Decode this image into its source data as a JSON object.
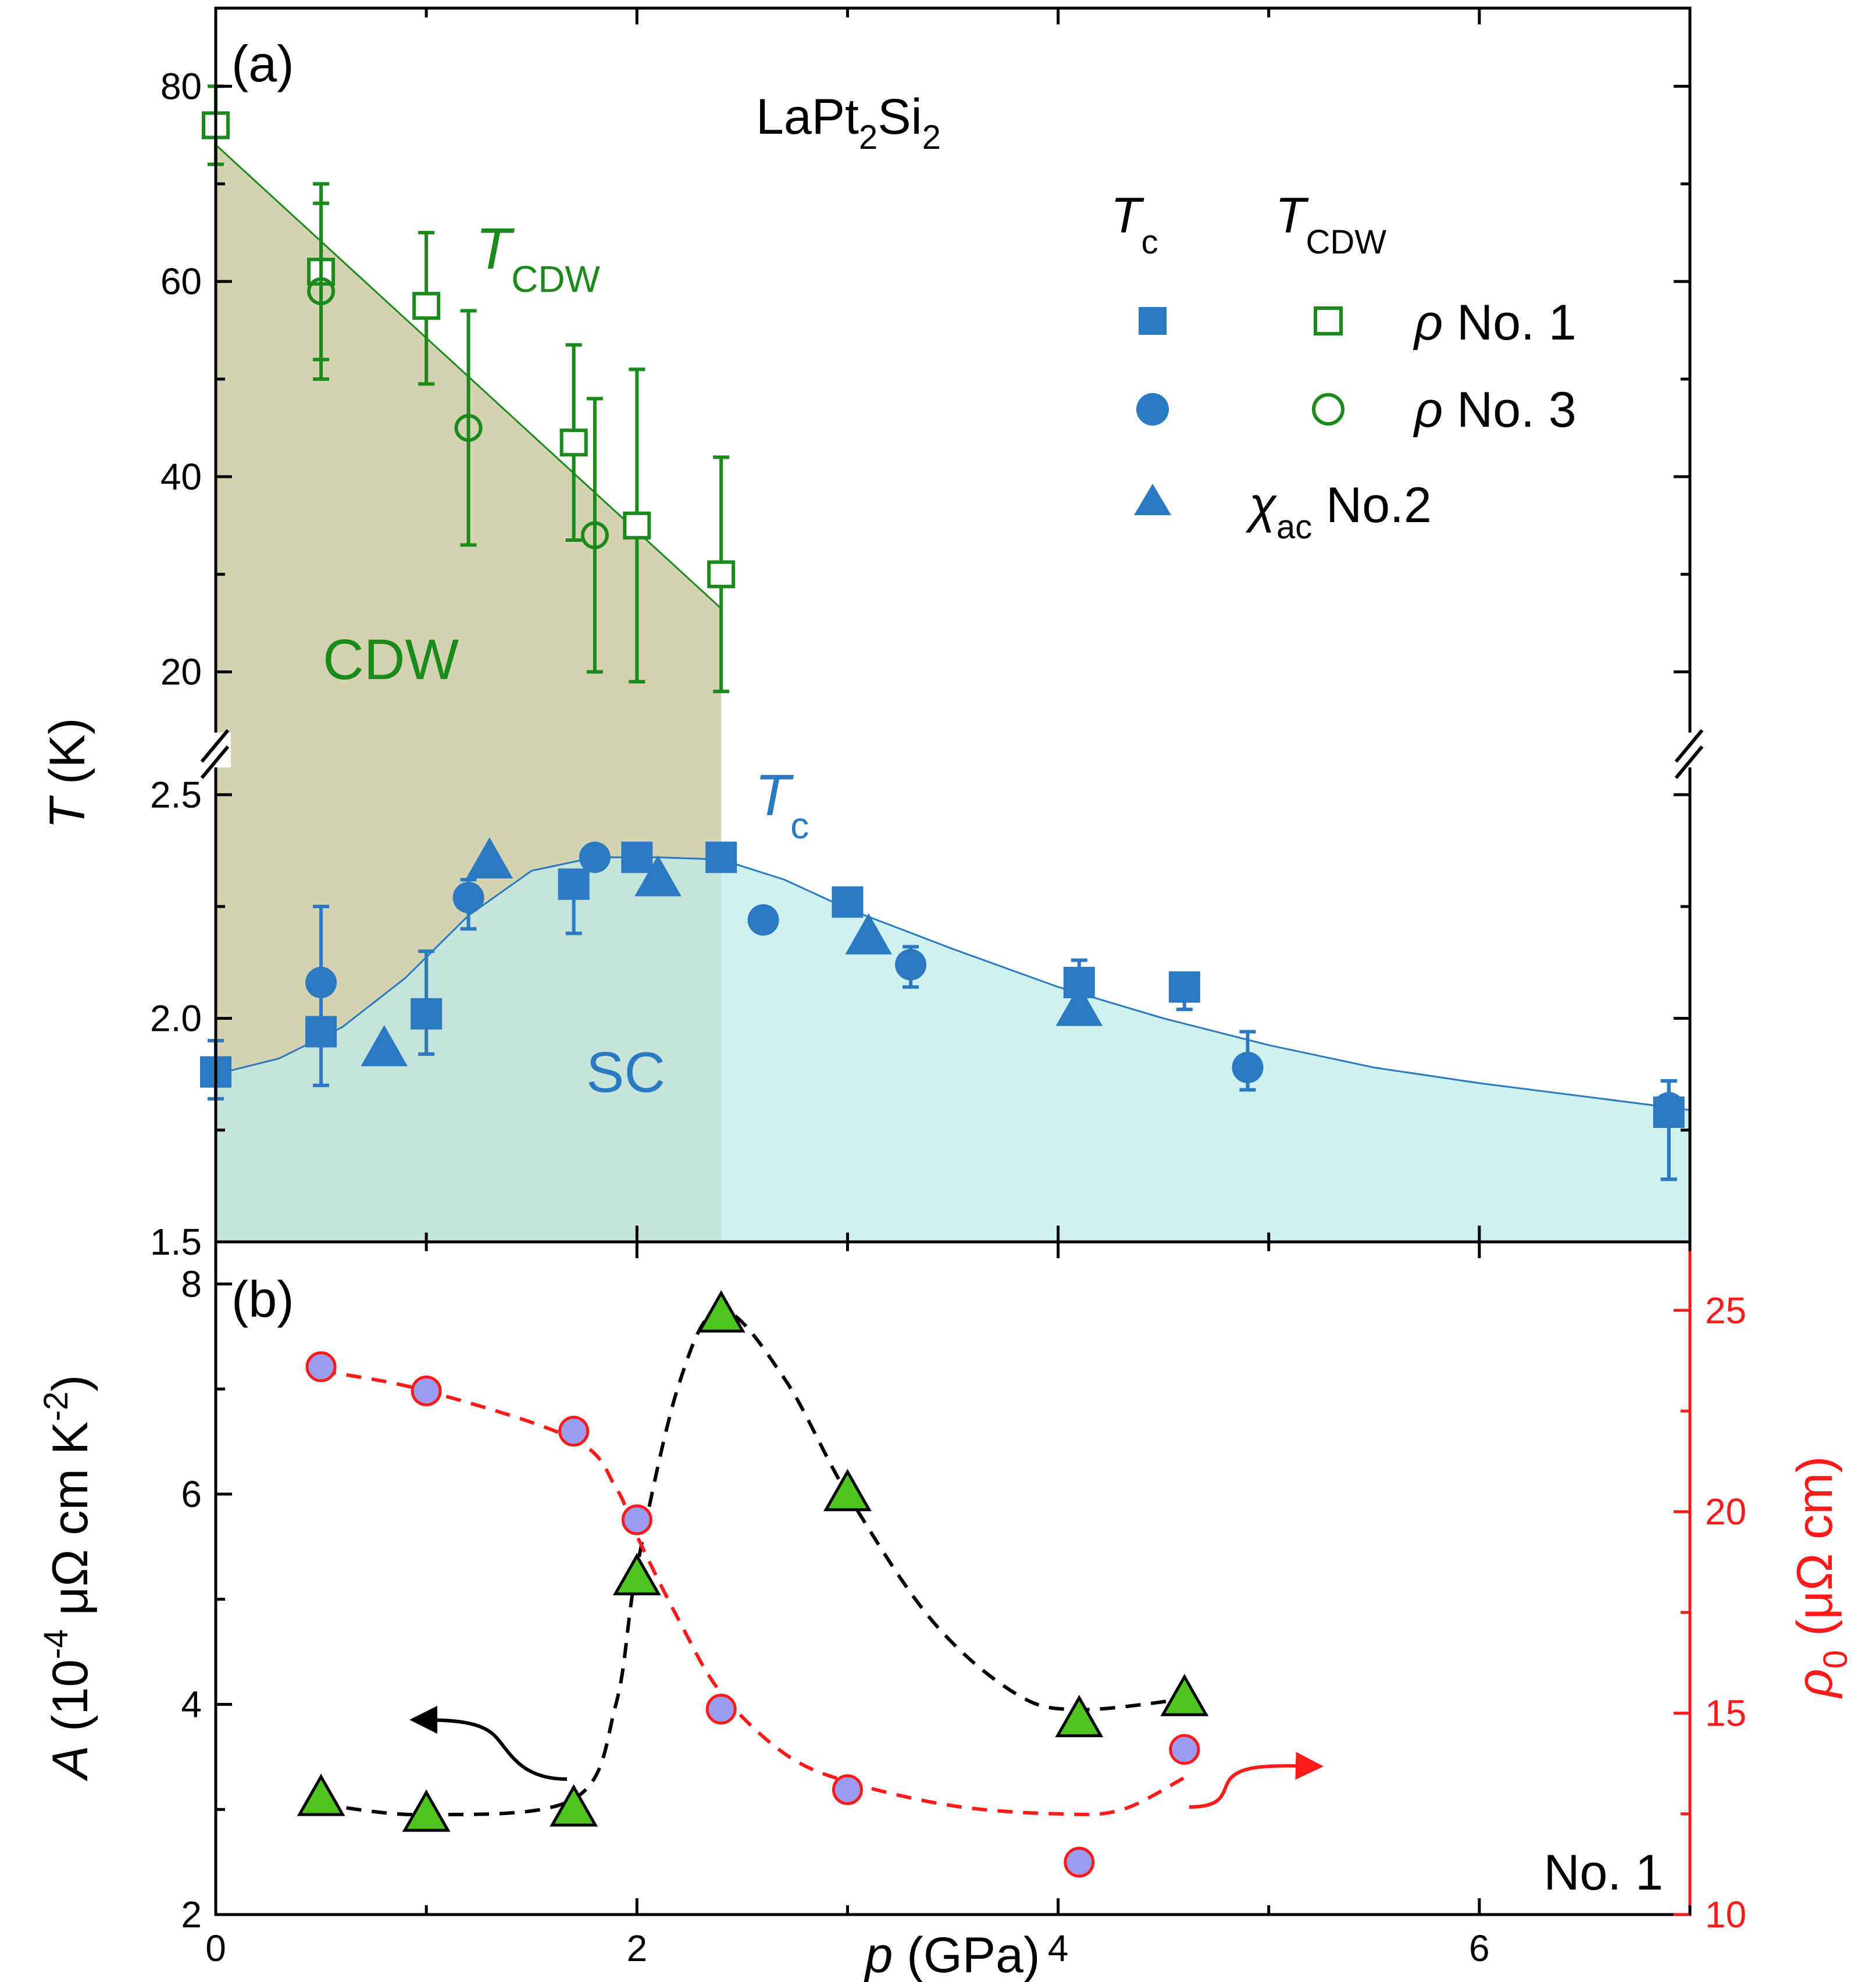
{
  "chart_data": [
    {
      "panel": "(a)",
      "type": "scatter",
      "title": "LaPt2Si2",
      "title_parts": {
        "base1": "LaPt",
        "sub1": "2",
        "base2": "Si",
        "sub2": "2"
      },
      "xlabel": "p (GPa)",
      "ylabel": {
        "symbol": "T",
        "unit": " (K)"
      },
      "xlim": [
        0,
        7
      ],
      "upper_ylim": [
        12,
        88
      ],
      "lower_ylim": [
        1.5,
        2.6
      ],
      "upper_yticks": [
        "20",
        "40",
        "60",
        "80"
      ],
      "lower_yticks": [
        "1.5",
        "2.0",
        "2.5"
      ],
      "upper_ytick_values": [
        20,
        40,
        60,
        80
      ],
      "lower_ytick_values": [
        1.5,
        2.0,
        2.5
      ],
      "region_labels": {
        "cdw": "CDW",
        "sc": "SC"
      },
      "curve_labels": {
        "tcdw": {
          "symbol": "T",
          "sub": "CDW"
        },
        "tc": {
          "symbol": "T",
          "sub": "c"
        }
      },
      "legend": {
        "header_tc": {
          "symbol": "T",
          "sub": "c"
        },
        "header_tcdw": {
          "symbol": "T",
          "sub": "CDW"
        },
        "rows": [
          {
            "prefix": "ρ",
            "text": " No. 1"
          },
          {
            "prefix": "ρ",
            "text": " No. 3"
          },
          {
            "prefix": "χ",
            "sub": "ac",
            "text": " No.2"
          }
        ]
      },
      "cdw_boundary_p": 2.4,
      "tcdw_fit": {
        "p": [
          0,
          2.4
        ],
        "T": [
          74,
          26.5
        ]
      },
      "tc_fit": {
        "p": [
          0,
          0.3,
          0.6,
          0.9,
          1.2,
          1.5,
          1.8,
          2.1,
          2.4,
          2.7,
          3.0,
          3.5,
          4.0,
          4.5,
          5.0,
          5.5,
          6.0,
          6.5,
          7.0
        ],
        "T": [
          1.875,
          1.91,
          1.98,
          2.09,
          2.23,
          2.33,
          2.36,
          2.36,
          2.355,
          2.31,
          2.245,
          2.155,
          2.07,
          2.0,
          1.94,
          1.89,
          1.855,
          1.825,
          1.795
        ]
      },
      "series": [
        {
          "name": "T_CDW rho No. 1",
          "marker": "open-square",
          "color": "#1a8a1a",
          "p": [
            0,
            0.5,
            1.0,
            1.7,
            2.0,
            2.4
          ],
          "T": [
            76,
            61,
            57.5,
            43.5,
            35,
            30
          ],
          "err_low": [
            4,
            9,
            8,
            10,
            16,
            12
          ],
          "err_high": [
            4,
            9,
            7.5,
            10,
            16,
            12
          ]
        },
        {
          "name": "T_CDW rho No. 3",
          "marker": "open-circle",
          "color": "#1a8a1a",
          "p": [
            0.5,
            1.2,
            1.8
          ],
          "T": [
            59,
            45,
            34
          ],
          "err_low": [
            9,
            12,
            14
          ],
          "err_high": [
            9,
            12,
            14
          ]
        },
        {
          "name": "Tc rho No. 1",
          "marker": "square",
          "color": "#2b79c1",
          "p": [
            0,
            0.5,
            1.0,
            1.7,
            2.0,
            2.4,
            3.0,
            4.1,
            4.6,
            6.9
          ],
          "T": [
            1.88,
            1.97,
            2.01,
            2.3,
            2.36,
            2.36,
            2.26,
            2.08,
            2.07,
            1.79
          ],
          "err_low": [
            0.06,
            0.12,
            0.09,
            0.11,
            0,
            0,
            0,
            0.03,
            0.05,
            0.15
          ],
          "err_high": [
            0.07,
            0.1,
            0.14,
            0.02,
            0,
            0,
            0,
            0.05,
            0.02,
            0.07
          ]
        },
        {
          "name": "Tc rho No. 3",
          "marker": "circle",
          "color": "#2b79c1",
          "p": [
            0.5,
            1.2,
            1.8,
            2.6,
            3.3,
            4.9,
            6.9
          ],
          "T": [
            2.08,
            2.27,
            2.36,
            2.22,
            2.12,
            1.89,
            1.8
          ],
          "err_low": [
            0.08,
            0.07,
            0,
            0,
            0.05,
            0.05,
            0.16
          ],
          "err_high": [
            0.17,
            0.04,
            0,
            0,
            0.04,
            0.08,
            0.06
          ]
        },
        {
          "name": "Tc chi_ac No.2",
          "marker": "triangle",
          "color": "#2b79c1",
          "p": [
            0.8,
            1.3,
            2.1,
            3.1,
            4.1
          ],
          "T": [
            1.93,
            2.35,
            2.31,
            2.18,
            2.02
          ]
        }
      ]
    },
    {
      "panel": "(b)",
      "type": "scatter",
      "xlabel": "p (GPa)",
      "ylabel_left": {
        "symbol": "A",
        "text": " (10",
        "exp": "-4",
        "text2": " μΩ cm K",
        "exp2": "-2",
        "text3": ")"
      },
      "ylabel_right": {
        "symbol": "ρ",
        "sub": "0",
        "text": " (μΩ cm)"
      },
      "xlim": [
        0,
        7
      ],
      "xticks": [
        "0",
        "2",
        "4",
        "6"
      ],
      "xtick_values": [
        0,
        2,
        4,
        6
      ],
      "ylim_left": [
        2,
        8.4
      ],
      "ylim_right": [
        10,
        26.7
      ],
      "left_yticks": [
        "2",
        "4",
        "6",
        "8"
      ],
      "left_ytick_values": [
        2,
        4,
        6,
        8
      ],
      "right_yticks": [
        "10",
        "15",
        "20",
        "25"
      ],
      "right_ytick_values": [
        10,
        15,
        20,
        25
      ],
      "sample_label": "No. 1",
      "series": [
        {
          "name": "A",
          "axis": "left",
          "marker": "triangle",
          "fill": "#4fc41f",
          "edge": "#000000",
          "p": [
            0.5,
            1.0,
            1.7,
            2.0,
            2.4,
            3.0,
            4.1,
            4.6
          ],
          "values": [
            3.1,
            2.95,
            3.0,
            5.2,
            7.7,
            6.0,
            3.85,
            4.05
          ]
        },
        {
          "name": "rho0",
          "axis": "right",
          "marker": "circle",
          "fill": "#9b9cf0",
          "edge": "#ff1a1a",
          "p": [
            0.5,
            1.0,
            1.7,
            2.0,
            2.4,
            3.0,
            4.1,
            4.6
          ],
          "values": [
            23.6,
            23.0,
            22.0,
            19.8,
            15.1,
            13.1,
            11.3,
            14.1
          ]
        }
      ],
      "guide_A": {
        "p": [
          0.5,
          1.0,
          1.7,
          1.9,
          2.0,
          2.2,
          2.4,
          2.7,
          3.0,
          3.4,
          3.8,
          4.1,
          4.6
        ],
        "values": [
          3.05,
          2.95,
          3.1,
          4.0,
          5.3,
          7.05,
          7.75,
          7.1,
          6.0,
          4.8,
          4.1,
          3.95,
          4.05
        ]
      },
      "guide_rho": {
        "p": [
          0.5,
          1.0,
          1.7,
          1.9,
          2.0,
          2.2,
          2.4,
          2.7,
          3.0,
          3.5,
          4.0,
          4.3,
          4.6
        ],
        "values": [
          23.5,
          23.0,
          21.8,
          20.6,
          19.4,
          17.3,
          15.5,
          14.0,
          13.3,
          12.7,
          12.5,
          12.6,
          13.4
        ]
      }
    }
  ]
}
